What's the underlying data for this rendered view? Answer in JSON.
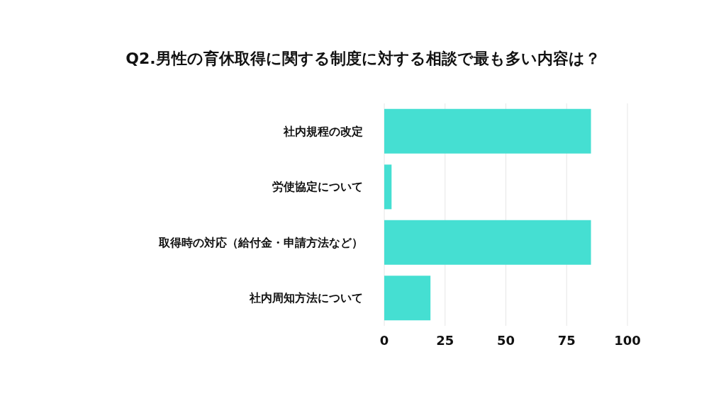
{
  "chart_data": {
    "type": "bar",
    "orientation": "horizontal",
    "title": "Q2.男性の育休取得に関する制度に対する相談で最も多い内容は？",
    "categories": [
      "社内規程の改定",
      "労使協定について",
      "取得時の対応（給付金・申請方法など）",
      "社内周知方法について"
    ],
    "values": [
      85,
      3,
      85,
      19
    ],
    "color": "#45dfd2",
    "xlim": [
      0,
      100
    ],
    "xticks": [
      0,
      25,
      50,
      75,
      100
    ],
    "grid": "x"
  }
}
